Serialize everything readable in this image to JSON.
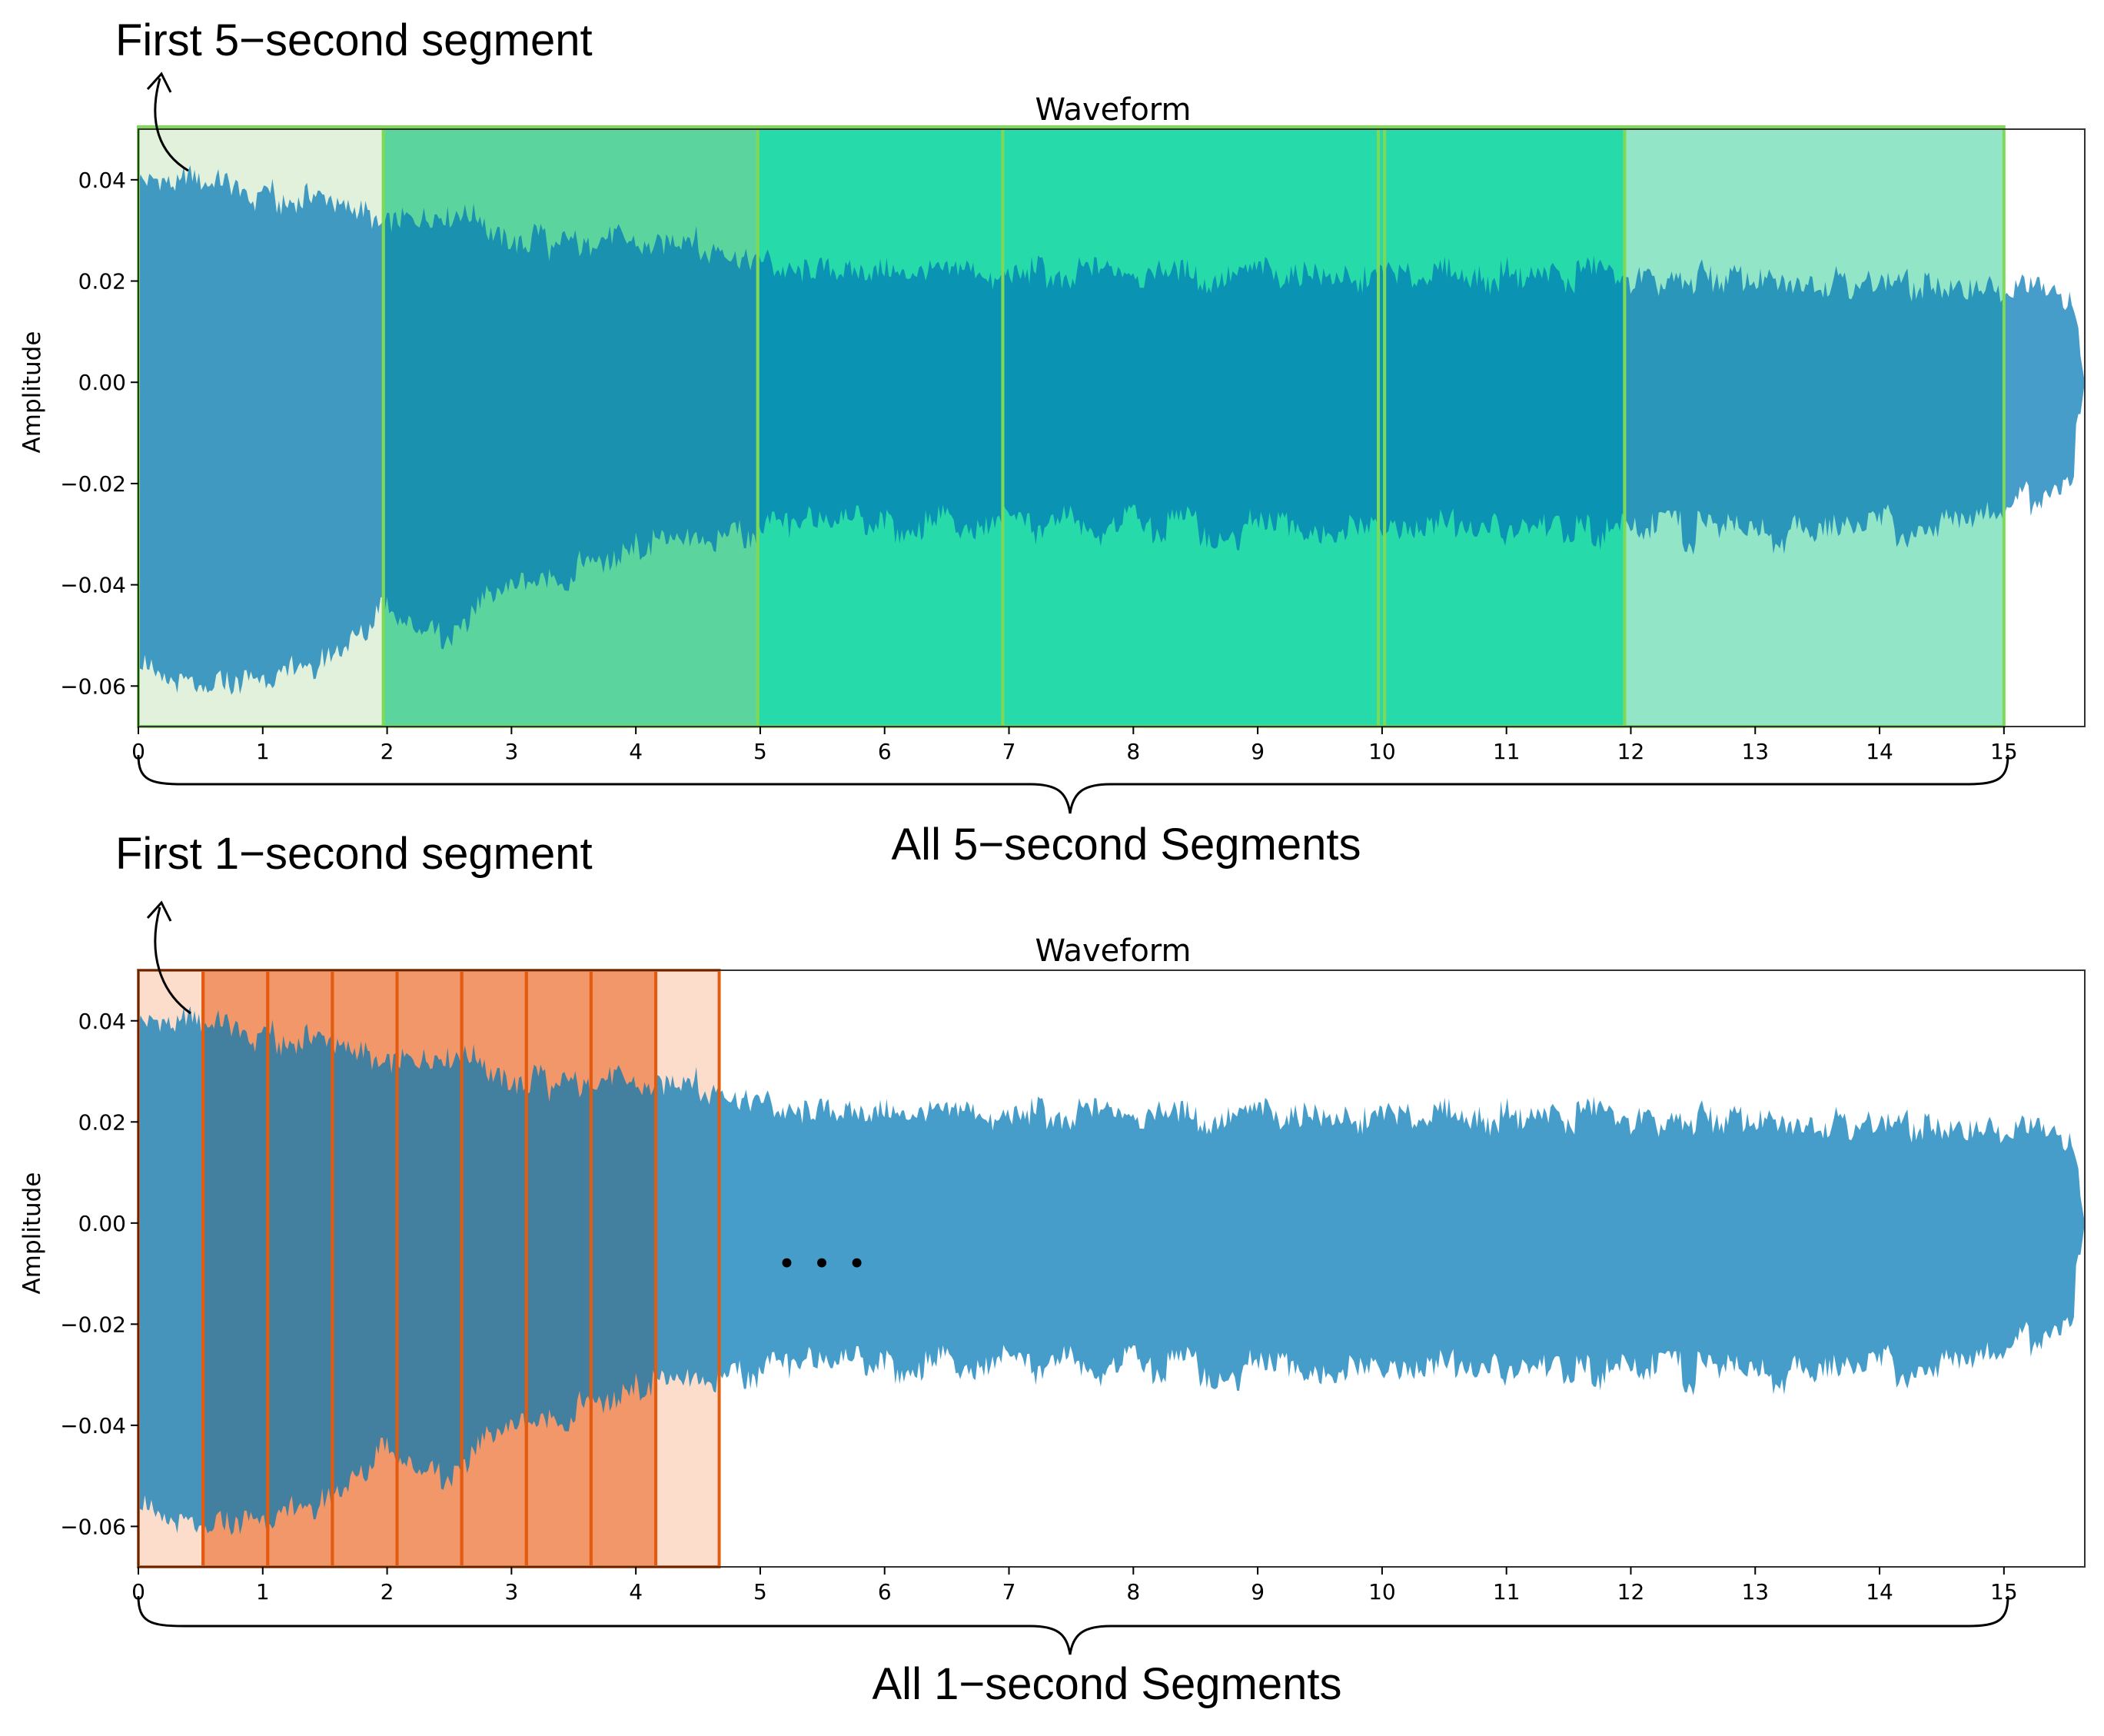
{
  "annotations": {
    "top_first_segment": "First 5−second segment",
    "top_all_segments": "All 5−second Segments",
    "bottom_first_segment": "First 1−second segment",
    "bottom_all_segments": "All 1−second Segments",
    "ellipsis": "• • •"
  },
  "colors": {
    "waveform": "#0077b6",
    "green_edge": "#7ed957",
    "green_light": "#dcefd6",
    "green_mid": "#3fcc8c",
    "green_strong": "#00d49a",
    "green_end": "#7fe0bd",
    "orange_edge": "#e35b0e",
    "orange_light": "#fcd7c2",
    "orange_fill": "#ee8550",
    "ellipsis": "#000000"
  },
  "chart_data": [
    {
      "type": "area",
      "title": "Waveform",
      "xlabel": "",
      "ylabel": "Amplitude",
      "xlim": [
        0,
        15.65
      ],
      "ylim": [
        -0.068,
        0.05
      ],
      "xticks": [
        0,
        1,
        2,
        3,
        4,
        5,
        6,
        7,
        8,
        9,
        10,
        11,
        12,
        13,
        14,
        15
      ],
      "xtick_labels": [
        "0",
        "1",
        "2",
        "3",
        "4",
        "5",
        "6",
        "7",
        "8",
        "9",
        "10",
        "11",
        "12",
        "13",
        "14",
        "15"
      ],
      "yticks": [
        0.04,
        0.02,
        0.0,
        -0.02,
        -0.04,
        -0.06
      ],
      "ytick_labels": [
        "0.04",
        "0.02",
        "0.00",
        "−0.02",
        "−0.04",
        "−0.06"
      ],
      "envelope": {
        "x": [
          0,
          0.5,
          1.0,
          1.5,
          1.8,
          1.95,
          2.4,
          3.0,
          3.5,
          4.0,
          4.5,
          5.0,
          6.0,
          7.0,
          8.0,
          9.0,
          10.0,
          11.0,
          12.0,
          13.0,
          14.0,
          15.0,
          15.3,
          15.55,
          15.65
        ],
        "upper": [
          0.041,
          0.039,
          0.037,
          0.036,
          0.036,
          0.031,
          0.035,
          0.029,
          0.027,
          0.028,
          0.027,
          0.024,
          0.022,
          0.021,
          0.021,
          0.021,
          0.021,
          0.021,
          0.021,
          0.02,
          0.02,
          0.018,
          0.018,
          0.015,
          0.0
        ],
        "lower": [
          -0.057,
          -0.06,
          -0.058,
          -0.056,
          -0.052,
          -0.042,
          -0.05,
          -0.04,
          -0.038,
          -0.033,
          -0.032,
          -0.029,
          -0.028,
          -0.028,
          -0.028,
          -0.029,
          -0.029,
          -0.029,
          -0.029,
          -0.03,
          -0.029,
          -0.026,
          -0.022,
          -0.018,
          0.0
        ]
      },
      "segments": [
        {
          "start": 0.0,
          "end": 1.97,
          "fill": "green_light"
        },
        {
          "start": 1.97,
          "end": 4.98,
          "fill": "green_mid"
        },
        {
          "start": 4.98,
          "end": 6.95,
          "fill": "green_strong"
        },
        {
          "start": 6.95,
          "end": 9.97,
          "fill": "green_strong"
        },
        {
          "start": 9.97,
          "end": 10.02,
          "fill": "green_strong"
        },
        {
          "start": 10.02,
          "end": 11.95,
          "fill": "green_strong"
        },
        {
          "start": 11.95,
          "end": 15.0,
          "fill": "green_end"
        }
      ]
    },
    {
      "type": "area",
      "title": "Waveform",
      "xlabel": "",
      "ylabel": "Amplitude",
      "xlim": [
        0,
        15.65
      ],
      "ylim": [
        -0.068,
        0.05
      ],
      "xticks": [
        0,
        1,
        2,
        3,
        4,
        5,
        6,
        7,
        8,
        9,
        10,
        11,
        12,
        13,
        14,
        15
      ],
      "xtick_labels": [
        "0",
        "1",
        "2",
        "3",
        "4",
        "5",
        "6",
        "7",
        "8",
        "9",
        "10",
        "11",
        "12",
        "13",
        "14",
        "15"
      ],
      "yticks": [
        0.04,
        0.02,
        0.0,
        -0.02,
        -0.04,
        -0.06
      ],
      "ytick_labels": [
        "0.04",
        "0.02",
        "0.00",
        "−0.02",
        "−0.04",
        "−0.06"
      ],
      "envelope": {
        "x": [
          0,
          0.5,
          1.0,
          1.5,
          1.8,
          1.95,
          2.4,
          3.0,
          3.5,
          4.0,
          4.5,
          5.0,
          6.0,
          7.0,
          8.0,
          9.0,
          10.0,
          11.0,
          12.0,
          13.0,
          14.0,
          15.0,
          15.3,
          15.55,
          15.65
        ],
        "upper": [
          0.041,
          0.039,
          0.037,
          0.036,
          0.036,
          0.031,
          0.035,
          0.029,
          0.027,
          0.028,
          0.027,
          0.024,
          0.022,
          0.021,
          0.021,
          0.021,
          0.021,
          0.021,
          0.021,
          0.02,
          0.02,
          0.018,
          0.018,
          0.015,
          0.0
        ],
        "lower": [
          -0.057,
          -0.06,
          -0.058,
          -0.056,
          -0.052,
          -0.042,
          -0.05,
          -0.04,
          -0.038,
          -0.033,
          -0.032,
          -0.029,
          -0.028,
          -0.028,
          -0.028,
          -0.029,
          -0.029,
          -0.029,
          -0.029,
          -0.03,
          -0.029,
          -0.026,
          -0.022,
          -0.018,
          0.0
        ]
      },
      "segments": [
        {
          "start": 0.0,
          "end": 0.52,
          "fill": "orange_light"
        },
        {
          "start": 0.52,
          "end": 1.04,
          "fill": "orange_fill"
        },
        {
          "start": 1.04,
          "end": 1.56,
          "fill": "orange_fill"
        },
        {
          "start": 1.56,
          "end": 2.08,
          "fill": "orange_fill"
        },
        {
          "start": 2.08,
          "end": 2.6,
          "fill": "orange_fill"
        },
        {
          "start": 2.6,
          "end": 3.12,
          "fill": "orange_fill"
        },
        {
          "start": 3.12,
          "end": 3.64,
          "fill": "orange_fill"
        },
        {
          "start": 3.64,
          "end": 4.16,
          "fill": "orange_fill"
        },
        {
          "start": 4.16,
          "end": 4.67,
          "fill": "orange_light"
        }
      ]
    }
  ]
}
